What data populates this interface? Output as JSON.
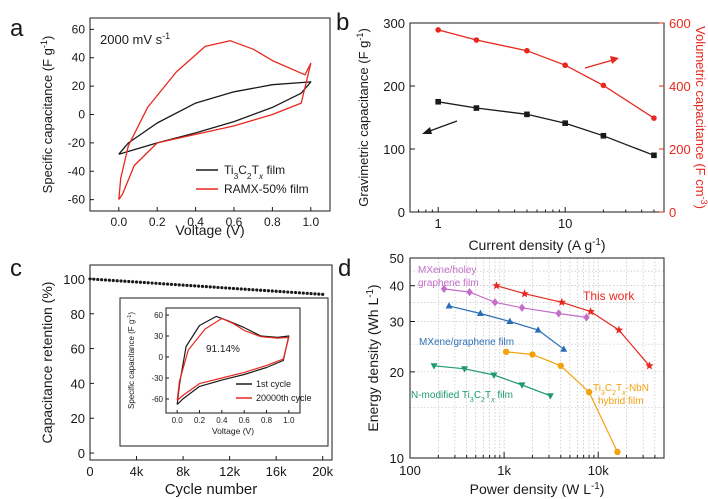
{
  "colors": {
    "black": "#1a1a1a",
    "red": "#e8281e",
    "purple": "#c46ec8",
    "blue": "#2a6fb6",
    "green": "#1f9b6c",
    "orange": "#f2a20f"
  },
  "chart_data": [
    {
      "panel": "a",
      "type": "line",
      "annotation": "2000 mV s",
      "annotation_sup": "-1",
      "xlabel": "Voltage (V)",
      "ylabel": "Specific capacitance (F g",
      "ylabel_sup": "-1",
      "ylabel_end": ")",
      "xlim": [
        -0.15,
        1.1
      ],
      "ylim": [
        -68,
        68
      ],
      "xticks": [
        0.0,
        0.2,
        0.4,
        0.6,
        0.8,
        1.0
      ],
      "xticklabels": [
        "0.0",
        "0.2",
        "0.4",
        "0.6",
        "0.8",
        "1.0"
      ],
      "yticks": [
        -60,
        -40,
        -20,
        0,
        20,
        40,
        60
      ],
      "yticklabels": [
        "-60",
        "-40",
        "-20",
        "0",
        "20",
        "40",
        "60"
      ],
      "legend_placement": "bottom-right",
      "series": [
        {
          "name_base": "Ti",
          "name_sub1": "3",
          "name_mid": "C",
          "name_sub2": "2",
          "name_mid2": "T",
          "name_sub3": "x",
          "name_end": " film",
          "color": "black",
          "points": [
            [
              0.0,
              -28
            ],
            [
              0.2,
              -20
            ],
            [
              0.4,
              -13
            ],
            [
              0.6,
              -5
            ],
            [
              0.8,
              5
            ],
            [
              0.95,
              15
            ],
            [
              1.0,
              23
            ],
            [
              0.8,
              21
            ],
            [
              0.6,
              16
            ],
            [
              0.4,
              8
            ],
            [
              0.2,
              -6
            ],
            [
              0.05,
              -20
            ],
            [
              0.0,
              -28
            ]
          ]
        },
        {
          "name": "RAMX-50% film",
          "color": "red",
          "points": [
            [
              0.0,
              -60
            ],
            [
              0.02,
              -56
            ],
            [
              0.08,
              -36
            ],
            [
              0.2,
              -20
            ],
            [
              0.4,
              -14
            ],
            [
              0.6,
              -8
            ],
            [
              0.8,
              0
            ],
            [
              0.95,
              8
            ],
            [
              1.0,
              36
            ],
            [
              0.97,
              28
            ],
            [
              0.8,
              38
            ],
            [
              0.7,
              46
            ],
            [
              0.58,
              52
            ],
            [
              0.45,
              48
            ],
            [
              0.3,
              30
            ],
            [
              0.15,
              5
            ],
            [
              0.05,
              -22
            ],
            [
              0.01,
              -45
            ],
            [
              0.0,
              -60
            ]
          ]
        }
      ]
    },
    {
      "panel": "b",
      "type": "line",
      "xlabel": "Current density (A g",
      "xlabel_sup": "-1",
      "xlabel_end": ")",
      "ylabel": "Gravimetric capacitance (F g",
      "ylabel_sup": "-1",
      "ylabel_end": ")",
      "y2label": "Volumetric capacitance (F cm",
      "y2label_sup": "-3",
      "y2label_end": ")",
      "xscale": "log",
      "xlim": [
        0.6,
        60
      ],
      "ylim": [
        0,
        300
      ],
      "y2lim": [
        0,
        600
      ],
      "xticks": [
        1,
        10
      ],
      "xticklabels": [
        "1",
        "10"
      ],
      "yticks": [
        0,
        100,
        200,
        300
      ],
      "yticklabels": [
        "0",
        "100",
        "200",
        "300"
      ],
      "y2ticks": [
        0,
        200,
        400,
        600
      ],
      "y2ticklabels": [
        "0",
        "200",
        "400",
        "600"
      ],
      "series": [
        {
          "axis": "left",
          "color": "black",
          "marker": "square",
          "x": [
            1,
            2,
            5,
            10,
            20,
            50
          ],
          "values": [
            175,
            165,
            155,
            141,
            121,
            90
          ]
        },
        {
          "axis": "right",
          "color": "red",
          "marker": "circle",
          "x": [
            1,
            2,
            5,
            10,
            20,
            50
          ],
          "values": [
            578,
            546,
            512,
            466,
            402,
            298
          ]
        }
      ]
    },
    {
      "panel": "c",
      "type": "line",
      "xlabel": "Cycle number",
      "ylabel": "Capacitance retention (%)",
      "xlim": [
        0,
        20800
      ],
      "ylim": [
        -4,
        108
      ],
      "xticks": [
        0,
        4000,
        8000,
        12000,
        16000,
        20000
      ],
      "xticklabels": [
        "0",
        "4k",
        "8k",
        "12k",
        "16k",
        "20k"
      ],
      "yticks": [
        0,
        20,
        40,
        60,
        80,
        100
      ],
      "yticklabels": [
        "0",
        "20",
        "40",
        "60",
        "80",
        "100"
      ],
      "series": [
        {
          "color": "black",
          "marker": "dot",
          "x": [
            0,
            20000
          ],
          "values": [
            100,
            91.14
          ]
        }
      ],
      "inset": {
        "type": "line",
        "annotation": "91.14%",
        "xlabel": "Voltage (V)",
        "ylabel": "Specific capacitance (F g",
        "ylabel_sup": "-1",
        "ylabel_end": ")",
        "xlim": [
          -0.1,
          1.1
        ],
        "ylim": [
          -80,
          70
        ],
        "xticks": [
          0.0,
          0.2,
          0.4,
          0.6,
          0.8,
          1.0
        ],
        "xticklabels": [
          "0.0",
          "0.2",
          "0.4",
          "0.6",
          "0.8",
          "1.0"
        ],
        "yticks": [
          -60,
          -30,
          0,
          30,
          60
        ],
        "yticklabels": [
          "-60",
          "-30",
          "0",
          "30",
          "60"
        ],
        "series": [
          {
            "name": "1st cycle",
            "color": "black",
            "points": [
              [
                0.0,
                -68
              ],
              [
                0.05,
                -60
              ],
              [
                0.2,
                -42
              ],
              [
                0.4,
                -33
              ],
              [
                0.6,
                -25
              ],
              [
                0.8,
                -15
              ],
              [
                0.95,
                -5
              ],
              [
                1.0,
                30
              ],
              [
                0.9,
                28
              ],
              [
                0.75,
                30
              ],
              [
                0.6,
                42
              ],
              [
                0.45,
                52
              ],
              [
                0.35,
                58
              ],
              [
                0.2,
                45
              ],
              [
                0.08,
                15
              ],
              [
                0.02,
                -40
              ],
              [
                0.0,
                -68
              ]
            ]
          },
          {
            "name": "20000th cycle",
            "color": "red",
            "points": [
              [
                0.0,
                -62
              ],
              [
                0.05,
                -55
              ],
              [
                0.2,
                -38
              ],
              [
                0.4,
                -30
              ],
              [
                0.6,
                -22
              ],
              [
                0.8,
                -12
              ],
              [
                0.95,
                -3
              ],
              [
                1.0,
                28
              ],
              [
                0.9,
                27
              ],
              [
                0.75,
                29
              ],
              [
                0.6,
                38
              ],
              [
                0.5,
                48
              ],
              [
                0.4,
                55
              ],
              [
                0.25,
                40
              ],
              [
                0.1,
                10
              ],
              [
                0.02,
                -35
              ],
              [
                0.0,
                -62
              ]
            ]
          }
        ]
      }
    },
    {
      "panel": "d",
      "type": "scatter",
      "xlabel": "Power density (W L",
      "xlabel_sup": "-1",
      "xlabel_end": ")",
      "ylabel": "Energy density (Wh L",
      "ylabel_sup": "-1",
      "ylabel_end": ")",
      "xscale": "log",
      "yscale": "log",
      "xlim": [
        100,
        50000
      ],
      "ylim": [
        10,
        50
      ],
      "xticks": [
        100,
        1000,
        10000
      ],
      "xticklabels": [
        "100",
        "1k",
        "10k"
      ],
      "yticks": [
        10,
        20,
        30,
        40,
        50
      ],
      "yticklabels": [
        "10",
        "20",
        "30",
        "40",
        "50"
      ],
      "series": [
        {
          "name": "This work",
          "color": "red",
          "marker": "star",
          "x": [
            830,
            1650,
            4100,
            8300,
            16600,
            35000
          ],
          "values": [
            40,
            37.5,
            35,
            32.5,
            28,
            21
          ]
        },
        {
          "name": "MXene/holey graphene film",
          "color": "purple",
          "marker": "diamond",
          "x": [
            230,
            430,
            800,
            1550,
            3800,
            7500
          ],
          "values": [
            39,
            38,
            35,
            33.5,
            32,
            31
          ]
        },
        {
          "name": "MXene/graphene film",
          "color": "blue",
          "marker": "triangle-up",
          "x": [
            260,
            560,
            1150,
            2300,
            4300
          ],
          "values": [
            34,
            32,
            30,
            28,
            24
          ]
        },
        {
          "name_base": "N-modified Ti",
          "name_sub1": "3",
          "name_mid": "C",
          "name_sub2": "2",
          "name_mid2": "T",
          "name_sub3": "x",
          "name_end": " film",
          "legend_text": "N-modified Ti3C2Tx film",
          "color": "green",
          "marker": "triangle-down",
          "x": [
            180,
            380,
            780,
            1550,
            3100
          ],
          "values": [
            21,
            20.5,
            19.5,
            18,
            16.5
          ]
        },
        {
          "name_base": "Ti",
          "name_sub1": "3",
          "name_mid": "C",
          "name_sub2": "2",
          "name_mid2": "T",
          "name_sub3": "x",
          "name_end": "-NbN",
          "name_line2": "hybrid film",
          "color": "orange",
          "marker": "circle",
          "x": [
            1050,
            2000,
            4000,
            8000,
            16000
          ],
          "values": [
            23.5,
            23,
            21,
            17,
            10.5
          ]
        }
      ]
    }
  ],
  "panel_letters": [
    "a",
    "b",
    "c",
    "d"
  ]
}
